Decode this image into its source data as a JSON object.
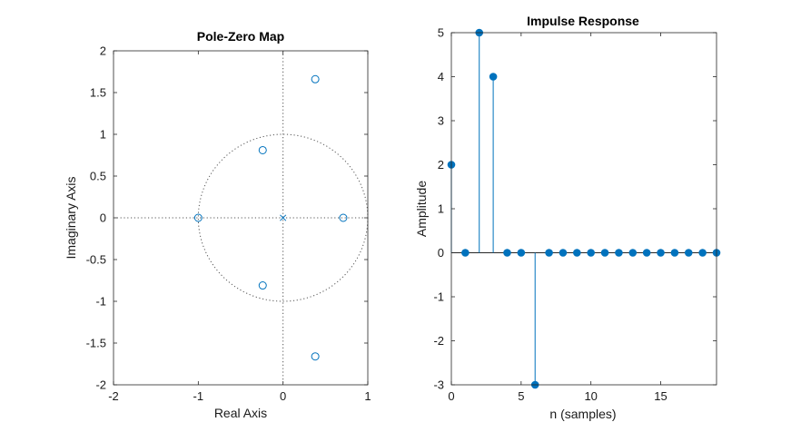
{
  "figure": {
    "background": "#ffffff",
    "marker_color": "#0072bd"
  },
  "chart_data": [
    {
      "type": "scatter",
      "title": "Pole-Zero Map",
      "xlabel": "Real Axis",
      "ylabel": "Imaginary Axis",
      "xlim": [
        -2,
        1
      ],
      "ylim": [
        -2,
        2
      ],
      "xticks": [
        -2,
        -1,
        0,
        1
      ],
      "xtick_labels": [
        "-2",
        "-1",
        "0",
        "1"
      ],
      "yticks": [
        2,
        1.5,
        1,
        0.5,
        0,
        -0.5,
        -1,
        -1.5,
        -2
      ],
      "ytick_labels": [
        "2",
        "1.5",
        "1",
        "0.5",
        "0",
        "-0.5",
        "-1",
        "-1.5",
        "-2"
      ],
      "unit_circle": true,
      "grid": false,
      "series": [
        {
          "marker": "o",
          "points": [
            [
              0.38,
              1.66
            ],
            [
              -0.24,
              0.81
            ],
            [
              -1.0,
              0.0
            ],
            [
              0.71,
              0.0
            ],
            [
              -0.24,
              -0.81
            ],
            [
              0.38,
              -1.66
            ]
          ]
        },
        {
          "marker": "x",
          "points": [
            [
              0.0,
              0.0
            ]
          ]
        }
      ]
    },
    {
      "type": "stem",
      "title": "Impulse Response",
      "xlabel": "n (samples)",
      "ylabel": "Amplitude",
      "xlim": [
        0,
        19
      ],
      "ylim": [
        -3,
        5
      ],
      "xticks": [
        0,
        5,
        10,
        15
      ],
      "xtick_labels": [
        "0",
        "5",
        "10",
        "15"
      ],
      "yticks": [
        5,
        4,
        3,
        2,
        1,
        0,
        -1,
        -2,
        -3
      ],
      "ytick_labels": [
        "5",
        "4",
        "3",
        "2",
        "1",
        "0",
        "-1",
        "-2",
        "-3"
      ],
      "grid": false,
      "x": [
        0,
        1,
        2,
        3,
        4,
        5,
        6,
        7,
        8,
        9,
        10,
        11,
        12,
        13,
        14,
        15,
        16,
        17,
        18,
        19
      ],
      "values": [
        2,
        0,
        5,
        4,
        0,
        0,
        -3,
        0,
        0,
        0,
        0,
        0,
        0,
        0,
        0,
        0,
        0,
        0,
        0,
        0
      ]
    }
  ]
}
